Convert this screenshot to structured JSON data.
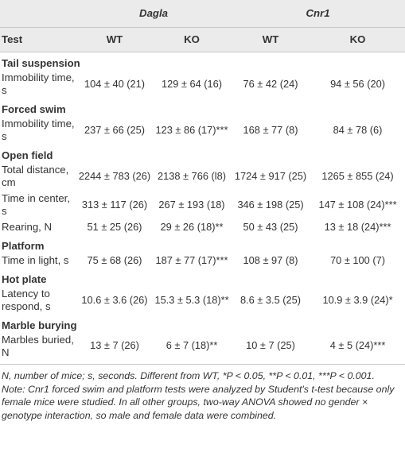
{
  "header": {
    "groups": [
      "Dagla",
      "Cnr1"
    ],
    "columns": [
      "Test",
      "WT",
      "KO",
      "WT",
      "KO"
    ]
  },
  "sections": [
    {
      "title": "Tail suspension",
      "rows": [
        {
          "label": "Immobility time, s",
          "cells": [
            "104 ± 40 (21)",
            "129 ± 64 (16)",
            "76 ± 42 (24)",
            "94 ± 56 (20)"
          ]
        }
      ]
    },
    {
      "title": "Forced swim",
      "rows": [
        {
          "label": "Immobility time, s",
          "cells": [
            "237 ± 66 (25)",
            "123 ± 86 (17)***",
            "168 ± 77 (8)",
            "84 ± 78 (6)"
          ]
        }
      ]
    },
    {
      "title": "Open field",
      "rows": [
        {
          "label": "Total distance, cm",
          "cells": [
            "2244 ± 783 (26)",
            "2138 ± 766 (l8)",
            "1724 ± 917 (25)",
            "1265 ± 855 (24)"
          ]
        },
        {
          "label": "Time in center, s",
          "cells": [
            "313 ± 117 (26)",
            "267 ± 193 (18)",
            "346 ± 198 (25)",
            "147 ± 108 (24)***"
          ]
        },
        {
          "label": "Rearing, N",
          "cells": [
            "51 ± 25 (26)",
            "29 ± 26 (18)**",
            "50 ± 43 (25)",
            "13 ± 18 (24)***"
          ]
        }
      ]
    },
    {
      "title": "Platform",
      "rows": [
        {
          "label": "Time in light, s",
          "cells": [
            "75 ± 68 (26)",
            "187 ± 77 (17)***",
            "108 ± 97 (8)",
            "70 ± 100 (7)"
          ]
        }
      ]
    },
    {
      "title": "Hot plate",
      "rows": [
        {
          "label": "Latency to respond, s",
          "cells": [
            "10.6 ± 3.6 (26)",
            "15.3 ± 5.3 (18)**",
            "8.6 ± 3.5 (25)",
            "10.9 ± 3.9 (24)*"
          ]
        }
      ]
    },
    {
      "title": "Marble burying",
      "rows": [
        {
          "label": "Marbles buried, N",
          "cells": [
            "13 ± 7 (26)",
            "6 ± 7 (18)**",
            "10 ± 7 (25)",
            "4 ± 5 (24)***"
          ]
        }
      ]
    }
  ],
  "footnotes": [
    "N, number of mice; s, seconds. Different from WT, *P < 0.05, **P < 0.01, ***P < 0.001.",
    "Note: Cnr1 forced swim and platform tests were analyzed by Student's t-test because only female mice were studied. In all other groups, two-way ANOVA showed no gender × genotype interaction, so male and female data were combined."
  ]
}
